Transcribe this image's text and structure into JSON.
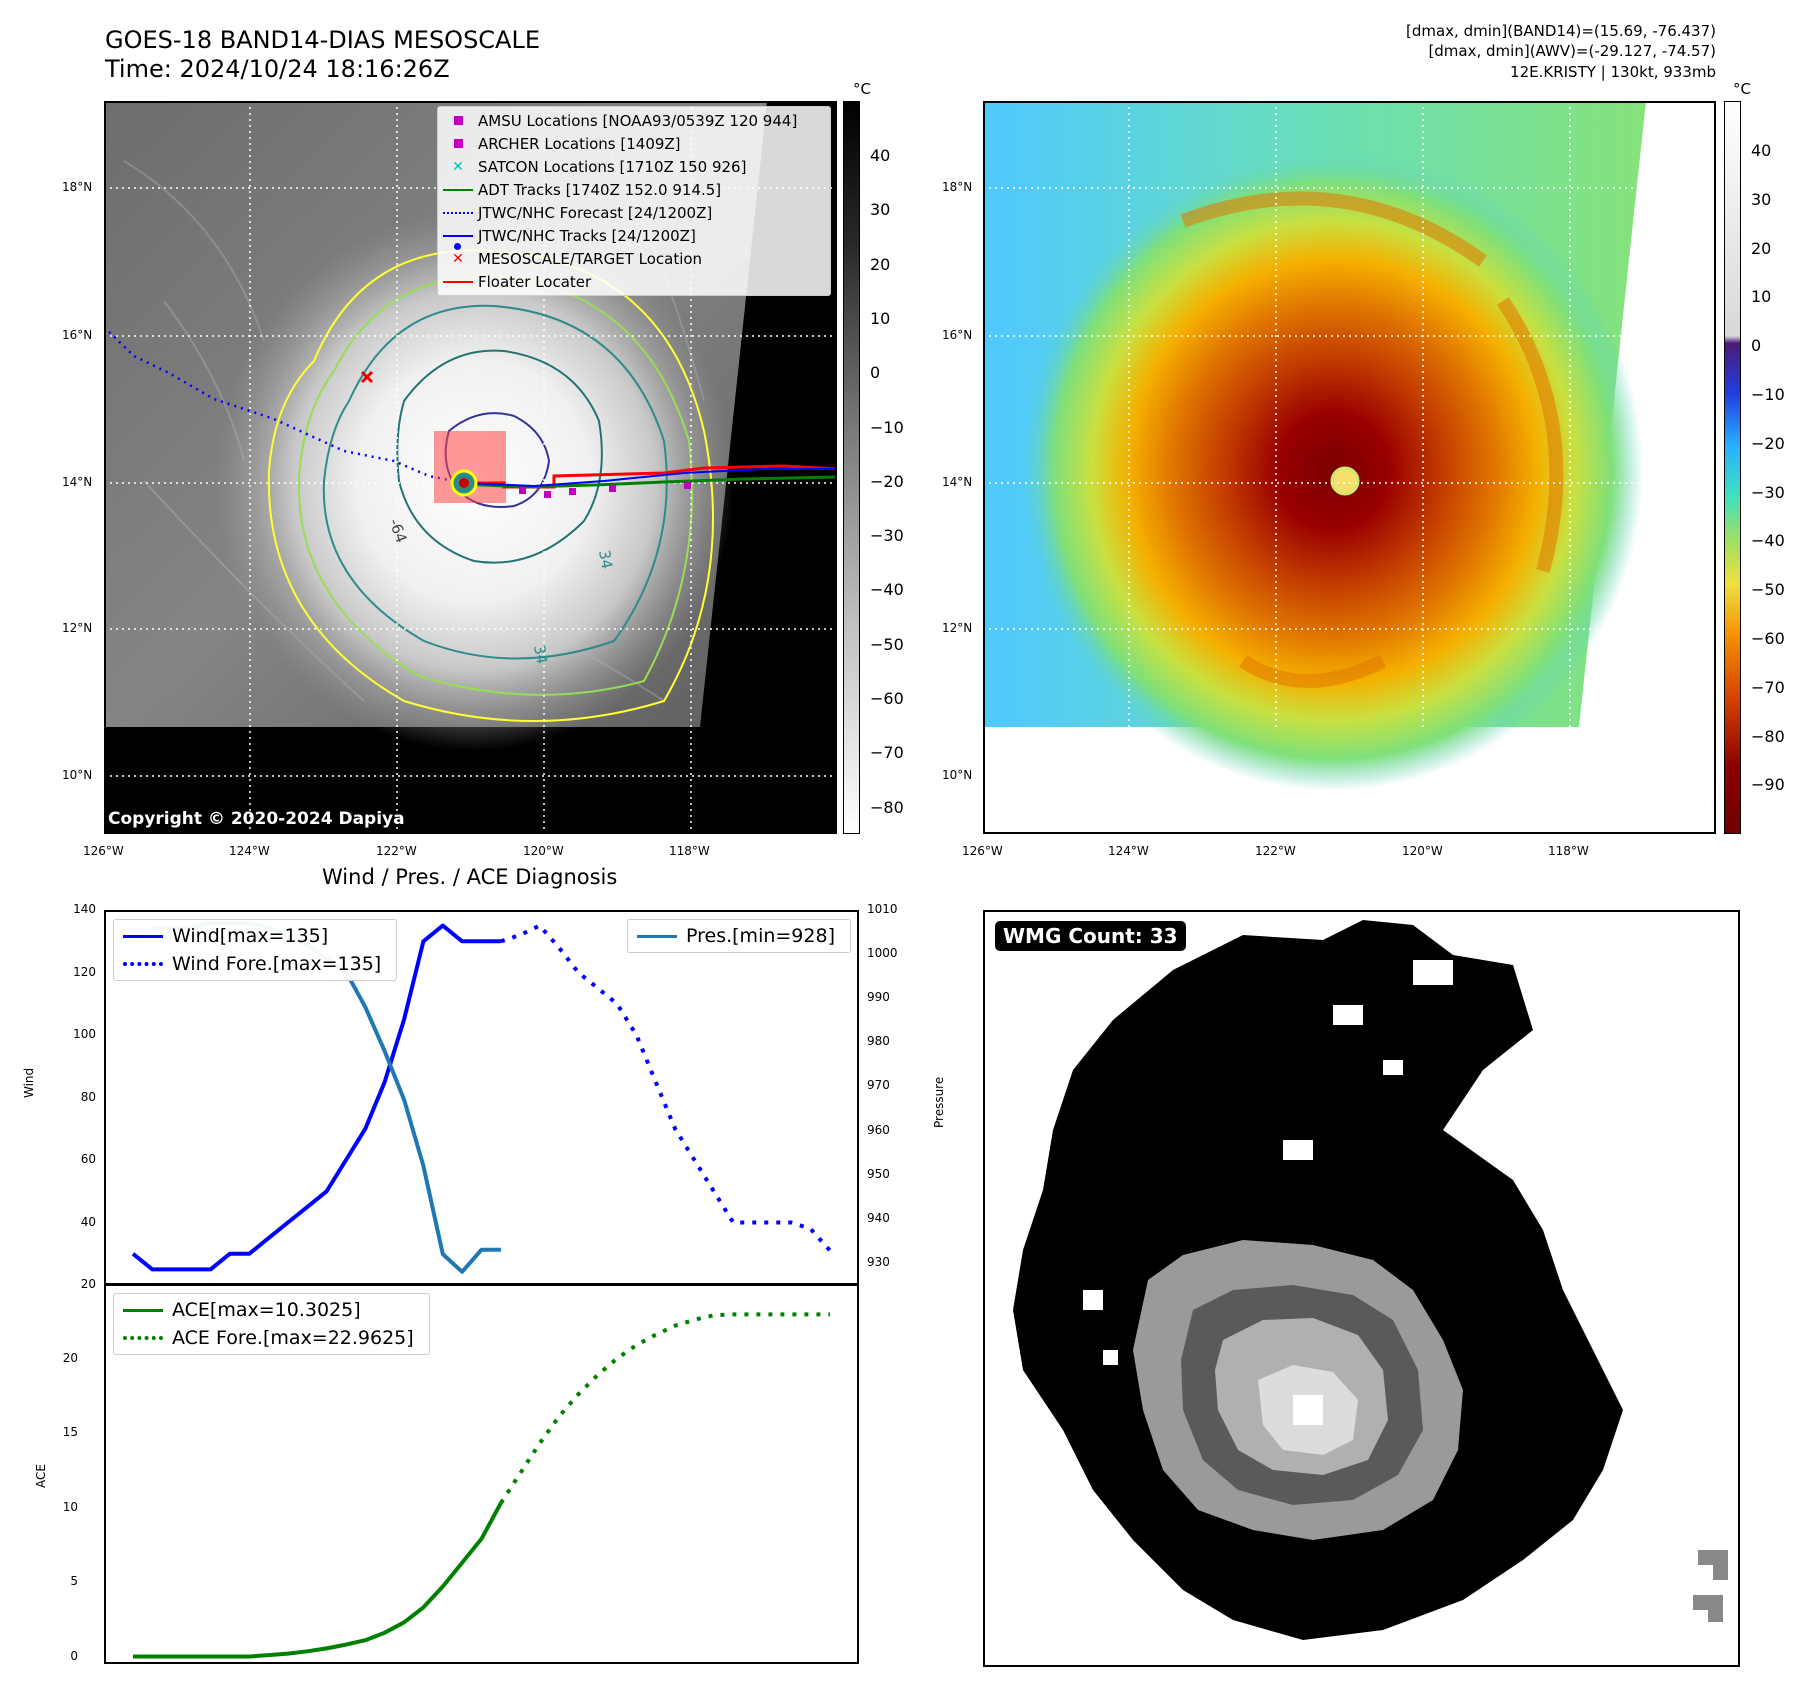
{
  "header": {
    "title_line1": "GOES-18 BAND14-DIAS MESOSCALE",
    "title_line2": "Time: 2024/10/24 18:16:26Z",
    "info_line1": "[dmax, dmin](BAND14)=(15.69, -76.437)",
    "info_line2": "[dmax, dmin](AWV)=(-29.127, -74.57)",
    "info_line3": "12E.KRISTY | 130kt, 933mb"
  },
  "map": {
    "lat_labels": [
      "18°N",
      "16°N",
      "14°N",
      "12°N",
      "10°N"
    ],
    "lon_labels": [
      "126°W",
      "124°W",
      "122°W",
      "120°W",
      "118°W"
    ],
    "copyright": "Copyright © 2020-2024 Dapiya",
    "contour_labels": [
      "-64",
      "34",
      "34",
      "34"
    ],
    "legend": [
      {
        "label": "AMSU Locations [NOAA93/0539Z 120 944]",
        "symbol": "square",
        "color": "#bf00bf"
      },
      {
        "label": "ARCHER Locations [1409Z]",
        "symbol": "square",
        "color": "#bf00bf"
      },
      {
        "label": "SATCON Locations [1710Z 150 926]",
        "symbol": "x",
        "color": "#00bfbf"
      },
      {
        "label": "ADT Tracks [1740Z 152.0 914.5]",
        "symbol": "line",
        "color": "#008000"
      },
      {
        "label": "JTWC/NHC Forecast [24/1200Z]",
        "symbol": "dotted",
        "color": "#0000ff"
      },
      {
        "label": "JTWC/NHC Tracks [24/1200Z]",
        "symbol": "line-dot",
        "color": "#0000ff"
      },
      {
        "label": "MESOSCALE/TARGET Location",
        "symbol": "x",
        "color": "#ff0000"
      },
      {
        "label": "Floater Locater",
        "symbol": "line",
        "color": "#ff0000"
      }
    ]
  },
  "colorbar_gray": {
    "unit": "°C",
    "ticks": [
      "40",
      "30",
      "20",
      "10",
      "0",
      "−10",
      "−20",
      "−30",
      "−40",
      "−50",
      "−60",
      "−70",
      "−80"
    ]
  },
  "colorbar_color": {
    "unit": "°C",
    "ticks": [
      "40",
      "30",
      "20",
      "10",
      "0",
      "−10",
      "−20",
      "−30",
      "−40",
      "−50",
      "−60",
      "−70",
      "−80",
      "−90"
    ]
  },
  "chart_data": [
    {
      "type": "line",
      "title": "Wind / Pres. / ACE Diagnosis",
      "ylabel": "Wind",
      "ylabel_right": "Pressure",
      "ylim": [
        20,
        140
      ],
      "ylim_right": [
        925,
        1010
      ],
      "yticks": [
        20,
        40,
        60,
        80,
        100,
        120,
        140
      ],
      "yticks_right": [
        930,
        940,
        950,
        960,
        970,
        980,
        990,
        1000,
        1010
      ],
      "legend_left": [
        "Wind[max=135]",
        "Wind Fore.[max=135]"
      ],
      "legend_right": [
        "Pres.[min=928]"
      ],
      "series": [
        {
          "name": "Wind[max=135]",
          "axis": "left",
          "style": "solid",
          "color": "#0000ff",
          "x": [
            0,
            1,
            2,
            3,
            4,
            5,
            6,
            7,
            8,
            9,
            10,
            11,
            12,
            13,
            14,
            15,
            16,
            17,
            18,
            19
          ],
          "values": [
            30,
            25,
            25,
            25,
            25,
            30,
            30,
            35,
            40,
            45,
            50,
            60,
            70,
            85,
            105,
            130,
            135,
            130,
            130,
            130
          ]
        },
        {
          "name": "Wind Fore.[max=135]",
          "axis": "left",
          "style": "dotted",
          "color": "#0000ff",
          "x": [
            19,
            20,
            21,
            22,
            23,
            24,
            25,
            26,
            27,
            28,
            29,
            30,
            31,
            32,
            33,
            34,
            35,
            36
          ],
          "values": [
            130,
            132,
            135,
            128,
            120,
            115,
            110,
            100,
            85,
            70,
            60,
            50,
            40,
            40,
            40,
            40,
            38,
            31
          ]
        },
        {
          "name": "Pres.[min=928]",
          "axis": "right",
          "style": "solid",
          "color": "#1f77b4",
          "x": [
            1,
            2,
            3,
            4,
            5,
            6,
            7,
            8,
            9,
            10,
            11,
            12,
            13,
            14,
            15,
            16,
            17,
            18,
            19
          ],
          "values": [
            1006,
            1006,
            1006,
            1007,
            1007,
            1007,
            1006,
            1004,
            1002,
            999,
            996,
            988,
            978,
            967,
            952,
            932,
            928,
            933,
            933
          ]
        }
      ]
    },
    {
      "type": "line",
      "ylabel": "ACE",
      "ylim": [
        -0.5,
        25
      ],
      "yticks": [
        0,
        5,
        10,
        15,
        20
      ],
      "legend": [
        "ACE[max=10.3025]",
        "ACE Fore.[max=22.9625]"
      ],
      "series": [
        {
          "name": "ACE[max=10.3025]",
          "style": "solid",
          "color": "#008000",
          "x": [
            0,
            1,
            2,
            3,
            4,
            5,
            6,
            7,
            8,
            9,
            10,
            11,
            12,
            13,
            14,
            15,
            16,
            17,
            18,
            19
          ],
          "values": [
            0,
            0,
            0,
            0,
            0,
            0,
            0,
            0.1,
            0.2,
            0.35,
            0.55,
            0.8,
            1.1,
            1.6,
            2.3,
            3.3,
            4.7,
            6.3,
            7.9,
            10.3025
          ]
        },
        {
          "name": "ACE Fore.[max=22.9625]",
          "style": "dotted",
          "color": "#008000",
          "x": [
            19,
            20,
            21,
            22,
            23,
            24,
            25,
            26,
            27,
            28,
            29,
            30,
            31,
            32,
            33,
            34,
            35,
            36
          ],
          "values": [
            10.3025,
            12.3,
            14.3,
            16.1,
            17.6,
            18.9,
            20.0,
            20.9,
            21.6,
            22.2,
            22.6,
            22.9,
            22.9625,
            22.9625,
            22.9625,
            22.9625,
            22.9625,
            22.9625
          ]
        }
      ]
    }
  ],
  "wmg": {
    "badge": "WMG Count: 33"
  }
}
